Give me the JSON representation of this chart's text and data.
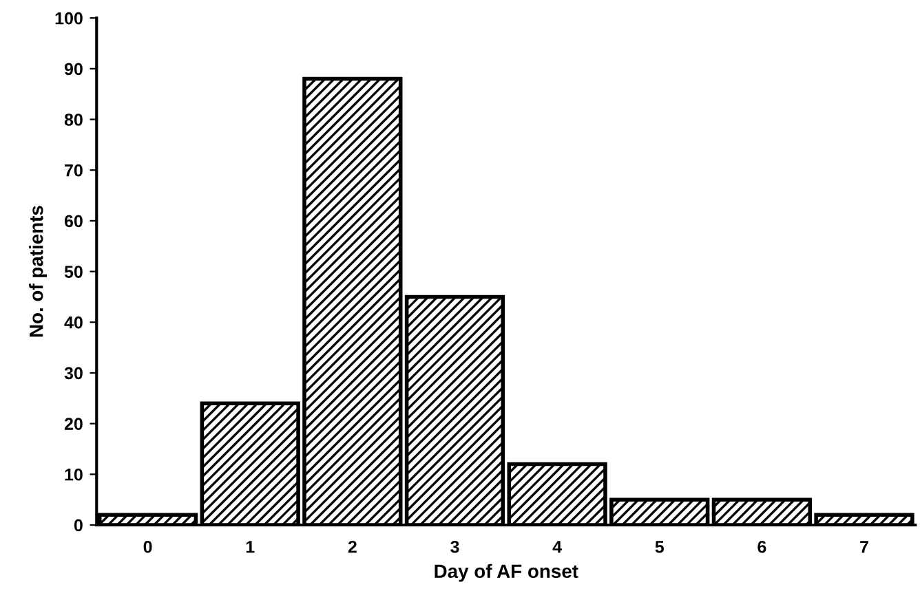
{
  "chart_data": {
    "type": "bar",
    "xlabel": "Day of AF onset",
    "ylabel": "No. of patients",
    "categories": [
      "0",
      "1",
      "2",
      "3",
      "4",
      "5",
      "6",
      "7"
    ],
    "values": [
      2,
      24,
      88,
      45,
      12,
      5,
      5,
      2
    ],
    "color": "#000000",
    "ylim": [
      0,
      100
    ],
    "yticks": [
      0,
      10,
      20,
      30,
      40,
      50,
      60,
      70,
      80,
      90,
      100
    ],
    "grid": false
  }
}
